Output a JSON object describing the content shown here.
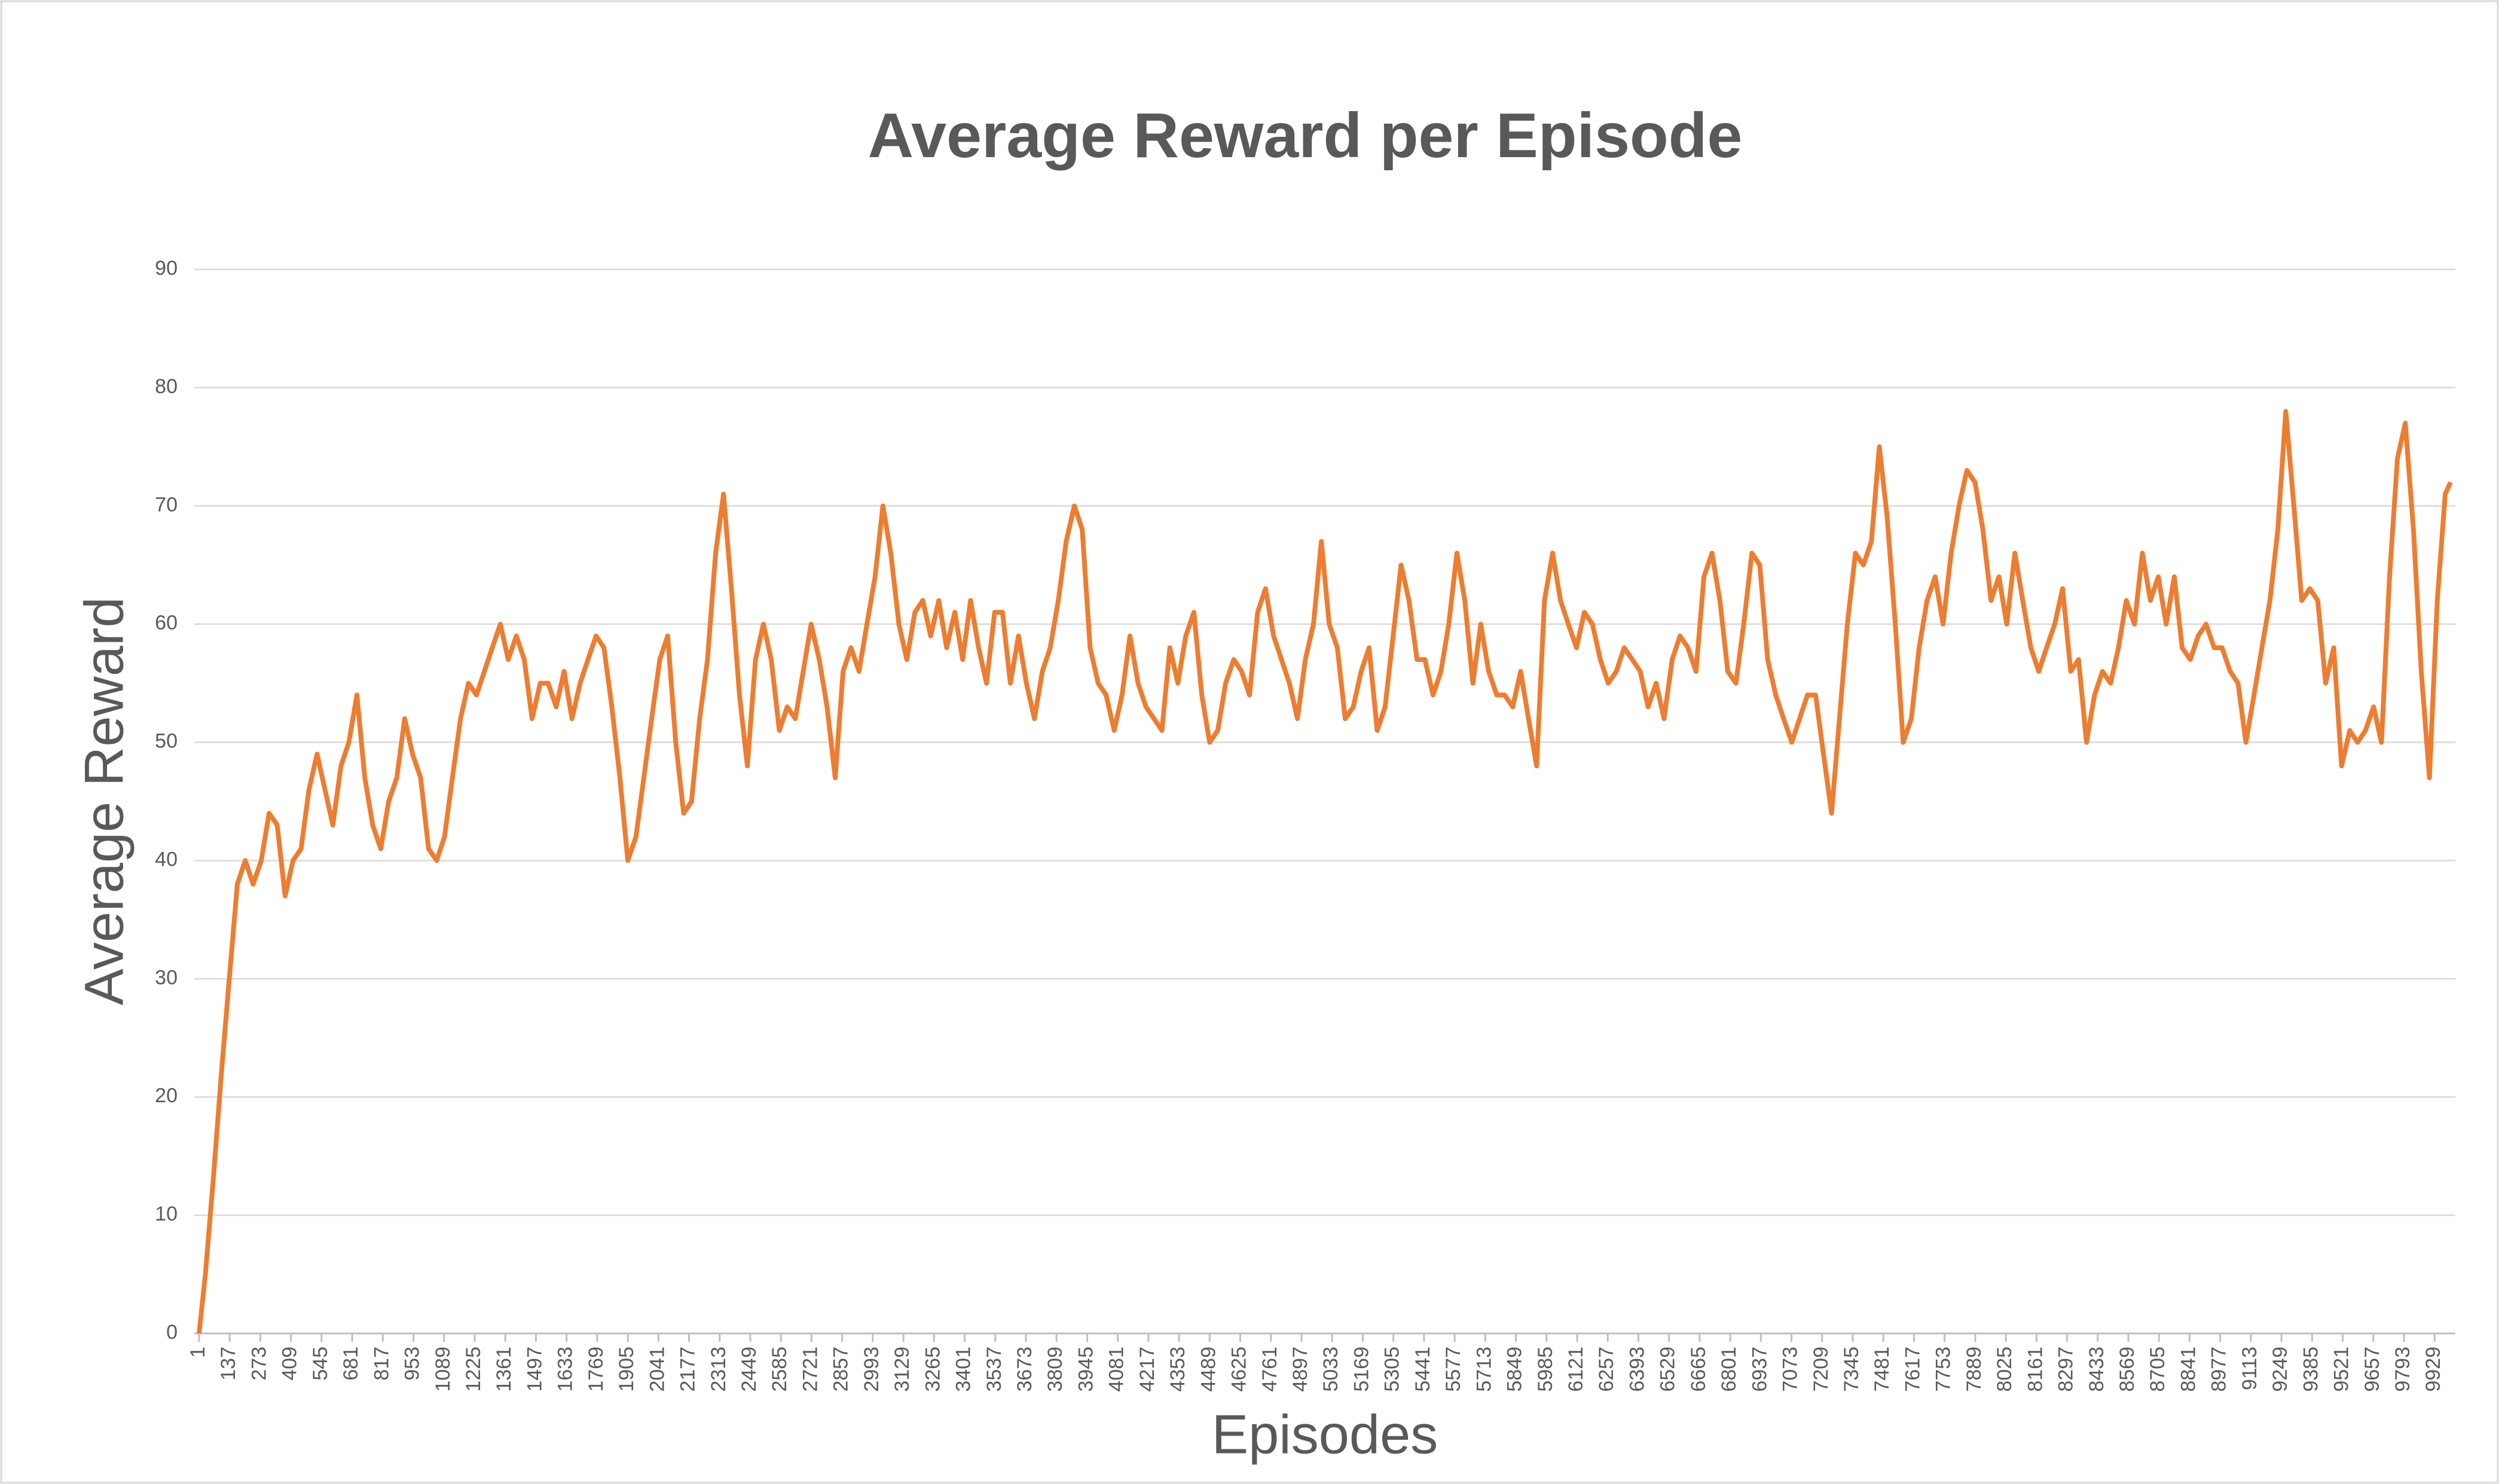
{
  "chart_data": {
    "type": "line",
    "title": "Average Reward per Episode",
    "xlabel": "Episodes",
    "ylabel": "Average Reward",
    "color": "#ed7d31",
    "grid": true,
    "x": [
      1,
      29,
      64,
      100,
      135,
      171,
      206,
      241,
      277,
      312,
      348,
      383,
      418,
      454,
      489,
      525,
      560,
      595,
      631,
      666,
      702,
      737,
      772,
      808,
      843,
      879,
      914,
      949,
      985,
      1020,
      1056,
      1091,
      1126,
      1162,
      1197,
      1233,
      1268,
      1303,
      1339,
      1374,
      1410,
      1445,
      1480,
      1516,
      1551,
      1587,
      1622,
      1657,
      1693,
      1728,
      1764,
      1799,
      1834,
      1870,
      1905,
      1941,
      1976,
      2011,
      2047,
      2082,
      2118,
      2153,
      2188,
      2224,
      2259,
      2295,
      2330,
      2365,
      2401,
      2436,
      2472,
      2507,
      2542,
      2578,
      2613,
      2649,
      2684,
      2719,
      2755,
      2790,
      2826,
      2861,
      2896,
      2932,
      2967,
      3003,
      3038,
      3073,
      3109,
      3144,
      3180,
      3215,
      3250,
      3286,
      3321,
      3357,
      3392,
      3427,
      3463,
      3498,
      3534,
      3569,
      3604,
      3640,
      3675,
      3711,
      3746,
      3781,
      3817,
      3852,
      3888,
      3923,
      3958,
      3994,
      4029,
      4065,
      4100,
      4135,
      4171,
      4206,
      4242,
      4277,
      4312,
      4348,
      4383,
      4419,
      4454,
      4489,
      4525,
      4560,
      4596,
      4631,
      4666,
      4702,
      4737,
      4773,
      4808,
      4843,
      4879,
      4914,
      4950,
      4985,
      5020,
      5056,
      5091,
      5127,
      5162,
      5197,
      5233,
      5268,
      5304,
      5339,
      5374,
      5410,
      5445,
      5481,
      5516,
      5551,
      5587,
      5622,
      5658,
      5693,
      5728,
      5764,
      5799,
      5835,
      5870,
      5905,
      5941,
      5976,
      6012,
      6047,
      6082,
      6118,
      6153,
      6189,
      6224,
      6259,
      6295,
      6330,
      6366,
      6401,
      6436,
      6472,
      6507,
      6543,
      6578,
      6613,
      6649,
      6684,
      6720,
      6755,
      6790,
      6826,
      6861,
      6897,
      6932,
      6967,
      7003,
      7038,
      7074,
      7109,
      7144,
      7180,
      7215,
      7251,
      7286,
      7321,
      7357,
      7392,
      7428,
      7463,
      7498,
      7534,
      7569,
      7605,
      7640,
      7675,
      7711,
      7746,
      7782,
      7817,
      7852,
      7888,
      7923,
      7959,
      7994,
      8029,
      8065,
      8100,
      8136,
      8171,
      8206,
      8242,
      8277,
      8313,
      8348,
      8383,
      8419,
      8454,
      8490,
      8525,
      8560,
      8596,
      8631,
      8667,
      8702,
      8737,
      8773,
      8808,
      8844,
      8879,
      8914,
      8950,
      8985,
      9021,
      9056,
      9091,
      9127,
      9162,
      9198,
      9233,
      9268,
      9304,
      9339,
      9375,
      9410,
      9445,
      9481,
      9516,
      9552,
      9587,
      9622,
      9658,
      9693,
      9729,
      9764,
      9799,
      9835,
      9870,
      9906,
      9941,
      9976,
      10000
    ],
    "values": [
      0,
      5,
      13,
      22,
      30,
      38,
      40,
      38,
      40,
      44,
      43,
      37,
      40,
      41,
      46,
      49,
      46,
      43,
      48,
      50,
      54,
      47,
      43,
      41,
      45,
      47,
      52,
      49,
      47,
      41,
      40,
      42,
      47,
      52,
      55,
      54,
      56,
      58,
      60,
      57,
      59,
      57,
      52,
      55,
      55,
      53,
      56,
      52,
      55,
      57,
      59,
      58,
      53,
      47,
      40,
      42,
      47,
      52,
      57,
      59,
      50,
      44,
      45,
      52,
      57,
      66,
      71,
      63,
      54,
      48,
      57,
      60,
      57,
      51,
      53,
      52,
      56,
      60,
      57,
      53,
      47,
      56,
      58,
      56,
      60,
      64,
      70,
      66,
      60,
      57,
      61,
      62,
      59,
      62,
      58,
      61,
      57,
      62,
      58,
      55,
      61,
      61,
      55,
      59,
      55,
      52,
      56,
      58,
      62,
      67,
      70,
      68,
      58,
      55,
      54,
      51,
      54,
      59,
      55,
      53,
      52,
      51,
      58,
      55,
      59,
      61,
      54,
      50,
      51,
      55,
      57,
      56,
      54,
      61,
      63,
      59,
      57,
      55,
      52,
      57,
      60,
      67,
      60,
      58,
      52,
      53,
      56,
      58,
      51,
      53,
      59,
      65,
      62,
      57,
      57,
      54,
      56,
      60,
      66,
      62,
      55,
      60,
      56,
      54,
      54,
      53,
      56,
      52,
      48,
      62,
      66,
      62,
      60,
      58,
      61,
      60,
      57,
      55,
      56,
      58,
      57,
      56,
      53,
      55,
      52,
      57,
      59,
      58,
      56,
      64,
      66,
      62,
      56,
      55,
      60,
      66,
      65,
      57,
      54,
      52,
      50,
      52,
      54,
      54,
      49,
      44,
      52,
      60,
      66,
      65,
      67,
      75,
      69,
      60,
      50,
      52,
      58,
      62,
      64,
      60,
      66,
      70,
      73,
      72,
      68,
      62,
      64,
      60,
      66,
      62,
      58,
      56,
      58,
      60,
      63,
      56,
      57,
      50,
      54,
      56,
      55,
      58,
      62,
      60,
      66,
      62,
      64,
      60,
      64,
      58,
      57,
      59,
      60,
      58,
      58,
      56,
      55,
      50,
      54,
      58,
      62,
      68,
      78,
      70,
      62,
      63,
      62,
      55,
      58,
      48,
      51,
      50,
      51,
      53,
      50,
      64,
      74,
      77,
      68,
      56,
      47,
      62,
      71,
      72
    ],
    "xlim": [
      1,
      10000
    ],
    "xticks": [
      1,
      137,
      273,
      409,
      545,
      681,
      817,
      953,
      1089,
      1225,
      1361,
      1497,
      1633,
      1769,
      1905,
      2041,
      2177,
      2313,
      2449,
      2585,
      2721,
      2857,
      2993,
      3129,
      3265,
      3401,
      3537,
      3673,
      3809,
      3945,
      4081,
      4217,
      4353,
      4489,
      4625,
      4761,
      4897,
      5033,
      5169,
      5305,
      5441,
      5577,
      5713,
      5849,
      5985,
      6121,
      6257,
      6393,
      6529,
      6665,
      6801,
      6937,
      7073,
      7209,
      7345,
      7481,
      7617,
      7753,
      7889,
      8025,
      8161,
      8297,
      8433,
      8569,
      8705,
      8841,
      8977,
      9113,
      9249,
      9385,
      9521,
      9657,
      9793,
      9929
    ],
    "ylim": [
      0,
      90
    ],
    "yticks": [
      0,
      10,
      20,
      30,
      40,
      50,
      60,
      70,
      80,
      90
    ]
  }
}
